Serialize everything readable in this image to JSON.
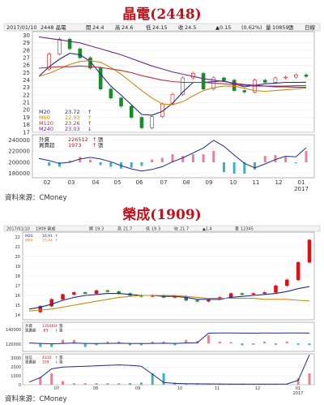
{
  "chart1": {
    "title": "晶電(2448)",
    "source": "資料來源：CMoney",
    "header": {
      "date": "2017/01/10",
      "name": "2448 晶電",
      "open_label": "開",
      "open": "24.4",
      "high_label": "高",
      "high": "24.6",
      "low_label": "低",
      "low": "24.15",
      "close_label": "收",
      "close": "24.5",
      "change": "▲0.15",
      "pct": "(0.62%)",
      "volume_label": "量",
      "volume": "10859",
      "volume_unit": "張",
      "period": "日線"
    },
    "legend": [
      {
        "name": "M20",
        "value": "23.72",
        "arrow": "↑",
        "color": "#1f2a8f"
      },
      {
        "name": "M60",
        "value": "22.93",
        "arrow": "↑",
        "color": "#c98a12"
      },
      {
        "name": "M120",
        "value": "23.26",
        "arrow": "↑",
        "color": "#b8323a"
      },
      {
        "name": "M240",
        "value": "23.03",
        "arrow": "↓",
        "color": "#6a2b8c"
      }
    ],
    "sub_legend": [
      {
        "name": "外資",
        "value": "226512",
        "arrow": "↑",
        "unit": "張"
      },
      {
        "name": "買賣超",
        "value": "1973",
        "arrow": "↑",
        "unit": "張"
      }
    ]
  },
  "chart2": {
    "title": "榮成(1909)",
    "source": "資料來源：CMoney",
    "header": {
      "date": "2017/01/10",
      "name": "1909 榮成",
      "open_label": "開",
      "open": "19.3",
      "high_label": "高",
      "high": "21.7",
      "low_label": "低",
      "low": "19.3",
      "close_label": "收",
      "close": "21.7",
      "change": "▲1.4",
      "volume_label": "量",
      "volume": "12345"
    },
    "legend": [
      {
        "name": "M20",
        "value": "16.91",
        "arrow": "↑",
        "color": "#1f2a8f"
      },
      {
        "name": "M60",
        "value": "15.44",
        "arrow": "↑",
        "color": "#c98a12"
      }
    ],
    "sub_legend1": [
      {
        "name": "外資",
        "value": "135061",
        "arrow": "↑",
        "unit": "張"
      },
      {
        "name": "買賣超",
        "value": "-85",
        "arrow": "↓",
        "unit": "張"
      }
    ],
    "sub_legend2": [
      {
        "name": "投信",
        "value": "4310",
        "arrow": "↑",
        "unit": "張"
      },
      {
        "name": "買賣超",
        "value": "339",
        "arrow": "↓",
        "unit": "張"
      }
    ]
  },
  "chart_data": [
    {
      "type": "line",
      "title": "晶電(2448)",
      "x_ticks": [
        "02",
        "03",
        "04",
        "05",
        "06",
        "07",
        "08",
        "09",
        "10",
        "11",
        "12",
        "01",
        "2017"
      ],
      "price_ticks": [
        17,
        18,
        19,
        20,
        21,
        22,
        23,
        24,
        25,
        26,
        27,
        28,
        29,
        30
      ],
      "ylim": [
        17,
        30.5
      ],
      "price_series": [
        {
          "name": "close",
          "values": [
            25.5,
            27.5,
            29.5,
            28.2,
            27,
            25.6,
            22.8,
            21.6,
            20.5,
            19,
            17.6,
            19.1,
            20.8,
            22.1,
            24.3,
            24.9,
            22.8,
            24.3,
            24,
            22.6,
            22.4,
            24,
            23.7,
            24.3,
            24.4,
            24.7,
            24.5
          ]
        },
        {
          "name": "M20",
          "values": [
            24.5,
            25.8,
            26.8,
            27.6,
            27.4,
            26.5,
            24.8,
            23.2,
            22,
            20.7,
            19.4,
            19.3,
            19.8,
            20.9,
            22.4,
            23.7,
            23.7,
            23.8,
            23.9,
            23.5,
            23.1,
            23.3,
            23.5,
            23.6,
            23.7,
            23.7,
            23.72
          ]
        },
        {
          "name": "M60",
          "values": [
            24.5,
            24.9,
            25.5,
            26.1,
            26.5,
            26.6,
            26.4,
            25.7,
            24.8,
            23.7,
            22.6,
            21.6,
            20.8,
            20.7,
            21.1,
            21.9,
            22.6,
            23,
            23.2,
            23.2,
            22.9,
            22.6,
            22.5,
            22.6,
            22.7,
            22.8,
            22.93
          ]
        },
        {
          "name": "M120",
          "values": [
            25.6,
            25.7,
            25.8,
            25.8,
            25.9,
            25.8,
            25.7,
            25.5,
            25.3,
            25,
            24.6,
            24.3,
            24,
            23.8,
            23.7,
            23.7,
            23.7,
            23.6,
            23.5,
            23.4,
            23.3,
            23.2,
            23.2,
            23.2,
            23.2,
            23.25,
            23.26
          ]
        },
        {
          "name": "M240",
          "values": [
            29.8,
            29.6,
            29.4,
            29.2,
            29,
            28.6,
            28.2,
            27.8,
            27.4,
            26.9,
            26.4,
            25.9,
            25.5,
            25.1,
            24.8,
            24.5,
            24.2,
            24,
            23.8,
            23.6,
            23.4,
            23.3,
            23.2,
            23.1,
            23.1,
            23.05,
            23.03
          ]
        }
      ],
      "sub_ticks": [
        180000,
        200000,
        220000,
        240000
      ],
      "sub_ylim": [
        172000,
        250000
      ],
      "sub_series": [
        {
          "name": "外資",
          "values": [
            207000,
            203000,
            198000,
            200000,
            206000,
            209000,
            206000,
            201000,
            194000,
            188000,
            184000,
            187000,
            192000,
            201000,
            208000,
            217000,
            226000,
            240000,
            229000,
            213000,
            198000,
            190000,
            197000,
            205000,
            211000,
            210000,
            226512
          ]
        }
      ]
    },
    {
      "type": "line",
      "title": "榮成(1909)",
      "x_ticks": [
        "07",
        "08",
        "09",
        "10",
        "11",
        "12",
        "01",
        "2017"
      ],
      "price_ticks": [
        14,
        15,
        16,
        17,
        18,
        19,
        20,
        21,
        22
      ],
      "ylim": [
        13.5,
        22.5
      ],
      "price_series": [
        {
          "name": "close",
          "values": [
            14.3,
            14.9,
            15.6,
            16.1,
            16.3,
            16.2,
            16.5,
            16.4,
            16.2,
            16,
            15.9,
            16,
            15.8,
            15.9,
            15.5,
            15.4,
            15.6,
            15.8,
            16.2,
            16.1,
            16.2,
            16.3,
            17,
            17.6,
            19.4,
            21.7
          ]
        },
        {
          "name": "M20",
          "values": [
            14.6,
            14.8,
            15.1,
            15.5,
            15.8,
            16,
            16.1,
            16.2,
            16.2,
            16.1,
            16,
            16,
            15.9,
            15.9,
            15.8,
            15.6,
            15.6,
            15.6,
            15.8,
            15.9,
            16,
            16.1,
            16.2,
            16.4,
            16.7,
            16.91
          ]
        },
        {
          "name": "M60",
          "values": [
            14.4,
            14.5,
            14.6,
            14.8,
            15,
            15.2,
            15.4,
            15.6,
            15.8,
            15.9,
            16,
            16,
            16,
            16,
            15.9,
            15.8,
            15.7,
            15.7,
            15.7,
            15.7,
            15.7,
            15.6,
            15.6,
            15.6,
            15.5,
            15.44
          ]
        }
      ],
      "sub1_ticks": [
        120000,
        140000
      ],
      "sub1_ylim": [
        110000,
        150000
      ],
      "sub1_series": [
        {
          "name": "外資",
          "values": [
            121500,
            121000,
            120500,
            121000,
            121500,
            121000,
            120800,
            121000,
            121200,
            121000,
            120800,
            121000,
            121200,
            121000,
            121500,
            121800,
            135000,
            135200,
            135300,
            135100,
            135000,
            135200,
            135100,
            135300,
            135200,
            135061
          ]
        }
      ],
      "sub2_ticks": [
        0,
        1000,
        2000,
        3000
      ],
      "sub2_ylim": [
        0,
        3500
      ],
      "sub2_series": [
        {
          "name": "投信",
          "values": [
            300,
            800,
            1800,
            2000,
            2050,
            2100,
            2150,
            2200,
            2250,
            2200,
            2100,
            1200,
            250,
            150,
            120,
            100,
            90,
            80,
            70,
            60,
            60,
            60,
            70,
            80,
            500,
            4310
          ]
        }
      ]
    }
  ]
}
